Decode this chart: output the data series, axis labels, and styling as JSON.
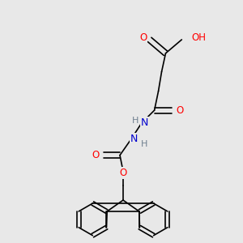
{
  "bg_color": "#e8e8e8",
  "atom_colors": {
    "C": "#000000",
    "O": "#ff0000",
    "N": "#0000cd",
    "H": "#708090"
  },
  "bond_color": "#000000",
  "bond_width": 1.2,
  "figsize": [
    3.0,
    3.0
  ],
  "dpi": 100
}
